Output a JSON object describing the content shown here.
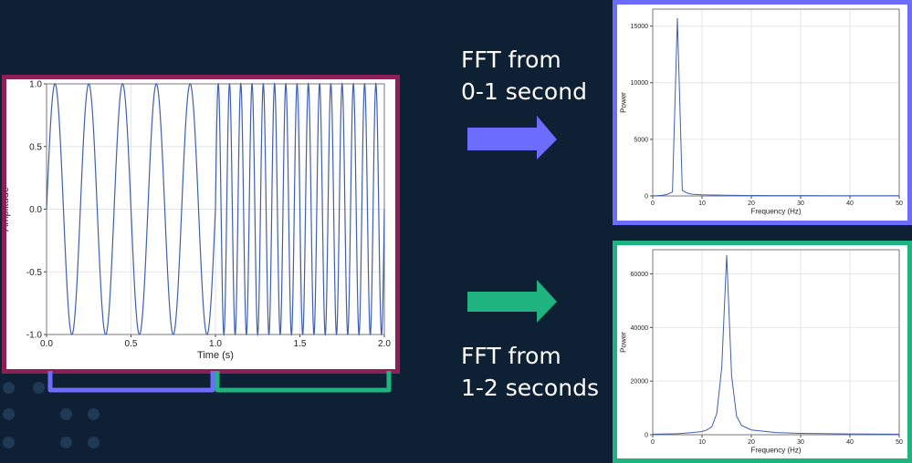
{
  "colors": {
    "background": "#0e2033",
    "signal_border": "#8c1f55",
    "fft1_accent": "#6c6cff",
    "fft2_accent": "#1fb380",
    "line": "#3f5fb0"
  },
  "captions": {
    "fft1": [
      "FFT from",
      "0-1 second"
    ],
    "fft2": [
      "FFT from",
      "1-2 seconds"
    ]
  },
  "chart_data": [
    {
      "type": "line",
      "xlabel": "Time (s)",
      "ylabel": "Amplitude",
      "xlim": [
        0,
        2
      ],
      "ylim": [
        -1,
        1
      ],
      "xticks": [
        "0.0",
        "0.5",
        "1.0",
        "1.5",
        "2.0"
      ],
      "yticks": [
        "-1.0",
        "-0.5",
        "0.0",
        "0.5",
        "1.0"
      ],
      "xtick_values": [
        0,
        0.5,
        1.0,
        1.5,
        2.0
      ],
      "ytick_values": [
        -1,
        -0.5,
        0,
        0.5,
        1
      ],
      "grid": true,
      "series": [
        {
          "segment": "0-1 s",
          "frequency_hz": 5,
          "amplitude": 1
        },
        {
          "segment": "1-2 s",
          "frequency_hz": 15,
          "amplitude": 1
        }
      ]
    },
    {
      "type": "line",
      "xlabel": "Frequency (Hz)",
      "ylabel": "Power",
      "xlim": [
        0,
        50
      ],
      "ylim": [
        0,
        16500
      ],
      "xticks": [
        "0",
        "10",
        "20",
        "30",
        "40",
        "50"
      ],
      "yticks": [
        "0",
        "5000",
        "10000",
        "15000"
      ],
      "xtick_values": [
        0,
        10,
        20,
        30,
        40,
        50
      ],
      "ytick_values": [
        0,
        5000,
        10000,
        15000
      ],
      "grid": true,
      "x": [
        0,
        1,
        2,
        3,
        4,
        5,
        6,
        7,
        8,
        10,
        15,
        20,
        25,
        30,
        35,
        40,
        45,
        50
      ],
      "y": [
        20,
        30,
        60,
        150,
        350,
        15700,
        500,
        250,
        150,
        100,
        60,
        45,
        35,
        30,
        25,
        22,
        20,
        18
      ]
    },
    {
      "type": "line",
      "xlabel": "Frequency (Hz)",
      "ylabel": "Power",
      "xlim": [
        0,
        50
      ],
      "ylim": [
        0,
        69000
      ],
      "xticks": [
        "0",
        "10",
        "20",
        "30",
        "40",
        "50"
      ],
      "yticks": [
        "0",
        "20000",
        "40000",
        "60000"
      ],
      "xtick_values": [
        0,
        10,
        20,
        30,
        40,
        50
      ],
      "ytick_values": [
        0,
        20000,
        40000,
        60000
      ],
      "grid": true,
      "x": [
        0,
        5,
        8,
        10,
        11,
        12,
        13,
        14,
        15,
        16,
        17,
        18,
        20,
        25,
        30,
        40,
        50
      ],
      "y": [
        200,
        400,
        800,
        1200,
        1800,
        3000,
        8000,
        25000,
        67000,
        22000,
        7000,
        3500,
        1800,
        800,
        500,
        300,
        200
      ]
    }
  ]
}
